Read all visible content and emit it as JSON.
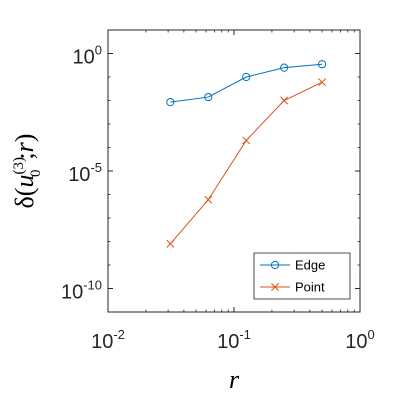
{
  "chart_data": {
    "type": "line",
    "xscale": "log",
    "yscale": "log",
    "xlim": [
      0.01,
      1
    ],
    "ylim": [
      1e-11,
      10
    ],
    "x_ticks": [
      0.01,
      0.1,
      1
    ],
    "y_ticks": [
      1e-10,
      1e-05,
      1
    ],
    "x_tick_labels": [
      {
        "base": "10",
        "exp": "-2"
      },
      {
        "base": "10",
        "exp": "-1"
      },
      {
        "base": "10",
        "exp": "0"
      }
    ],
    "y_tick_labels": [
      {
        "base": "10",
        "exp": "-10"
      },
      {
        "base": "10",
        "exp": "-5"
      },
      {
        "base": "10",
        "exp": "0"
      }
    ],
    "xlabel": "r",
    "ylabel": "δ(u0(3);r)",
    "ylabel_parts": {
      "pre": "δ(",
      "var": "u",
      "sub": "0",
      "sup": "(3)",
      "post": ";",
      "arg": "r",
      "close": ")"
    },
    "grid": false,
    "legend_position": "bottom-right",
    "series": [
      {
        "name": "Edge",
        "color": "#0072BD",
        "marker": "circle",
        "x": [
          0.03125,
          0.0625,
          0.125,
          0.25,
          0.5
        ],
        "y": [
          0.0085,
          0.014,
          0.1,
          0.25,
          0.35
        ]
      },
      {
        "name": "Point",
        "color": "#D95319",
        "marker": "x",
        "x": [
          0.03125,
          0.0625,
          0.125,
          0.25,
          0.5
        ],
        "y": [
          8e-09,
          6e-07,
          0.0002,
          0.01,
          0.06
        ]
      }
    ]
  }
}
